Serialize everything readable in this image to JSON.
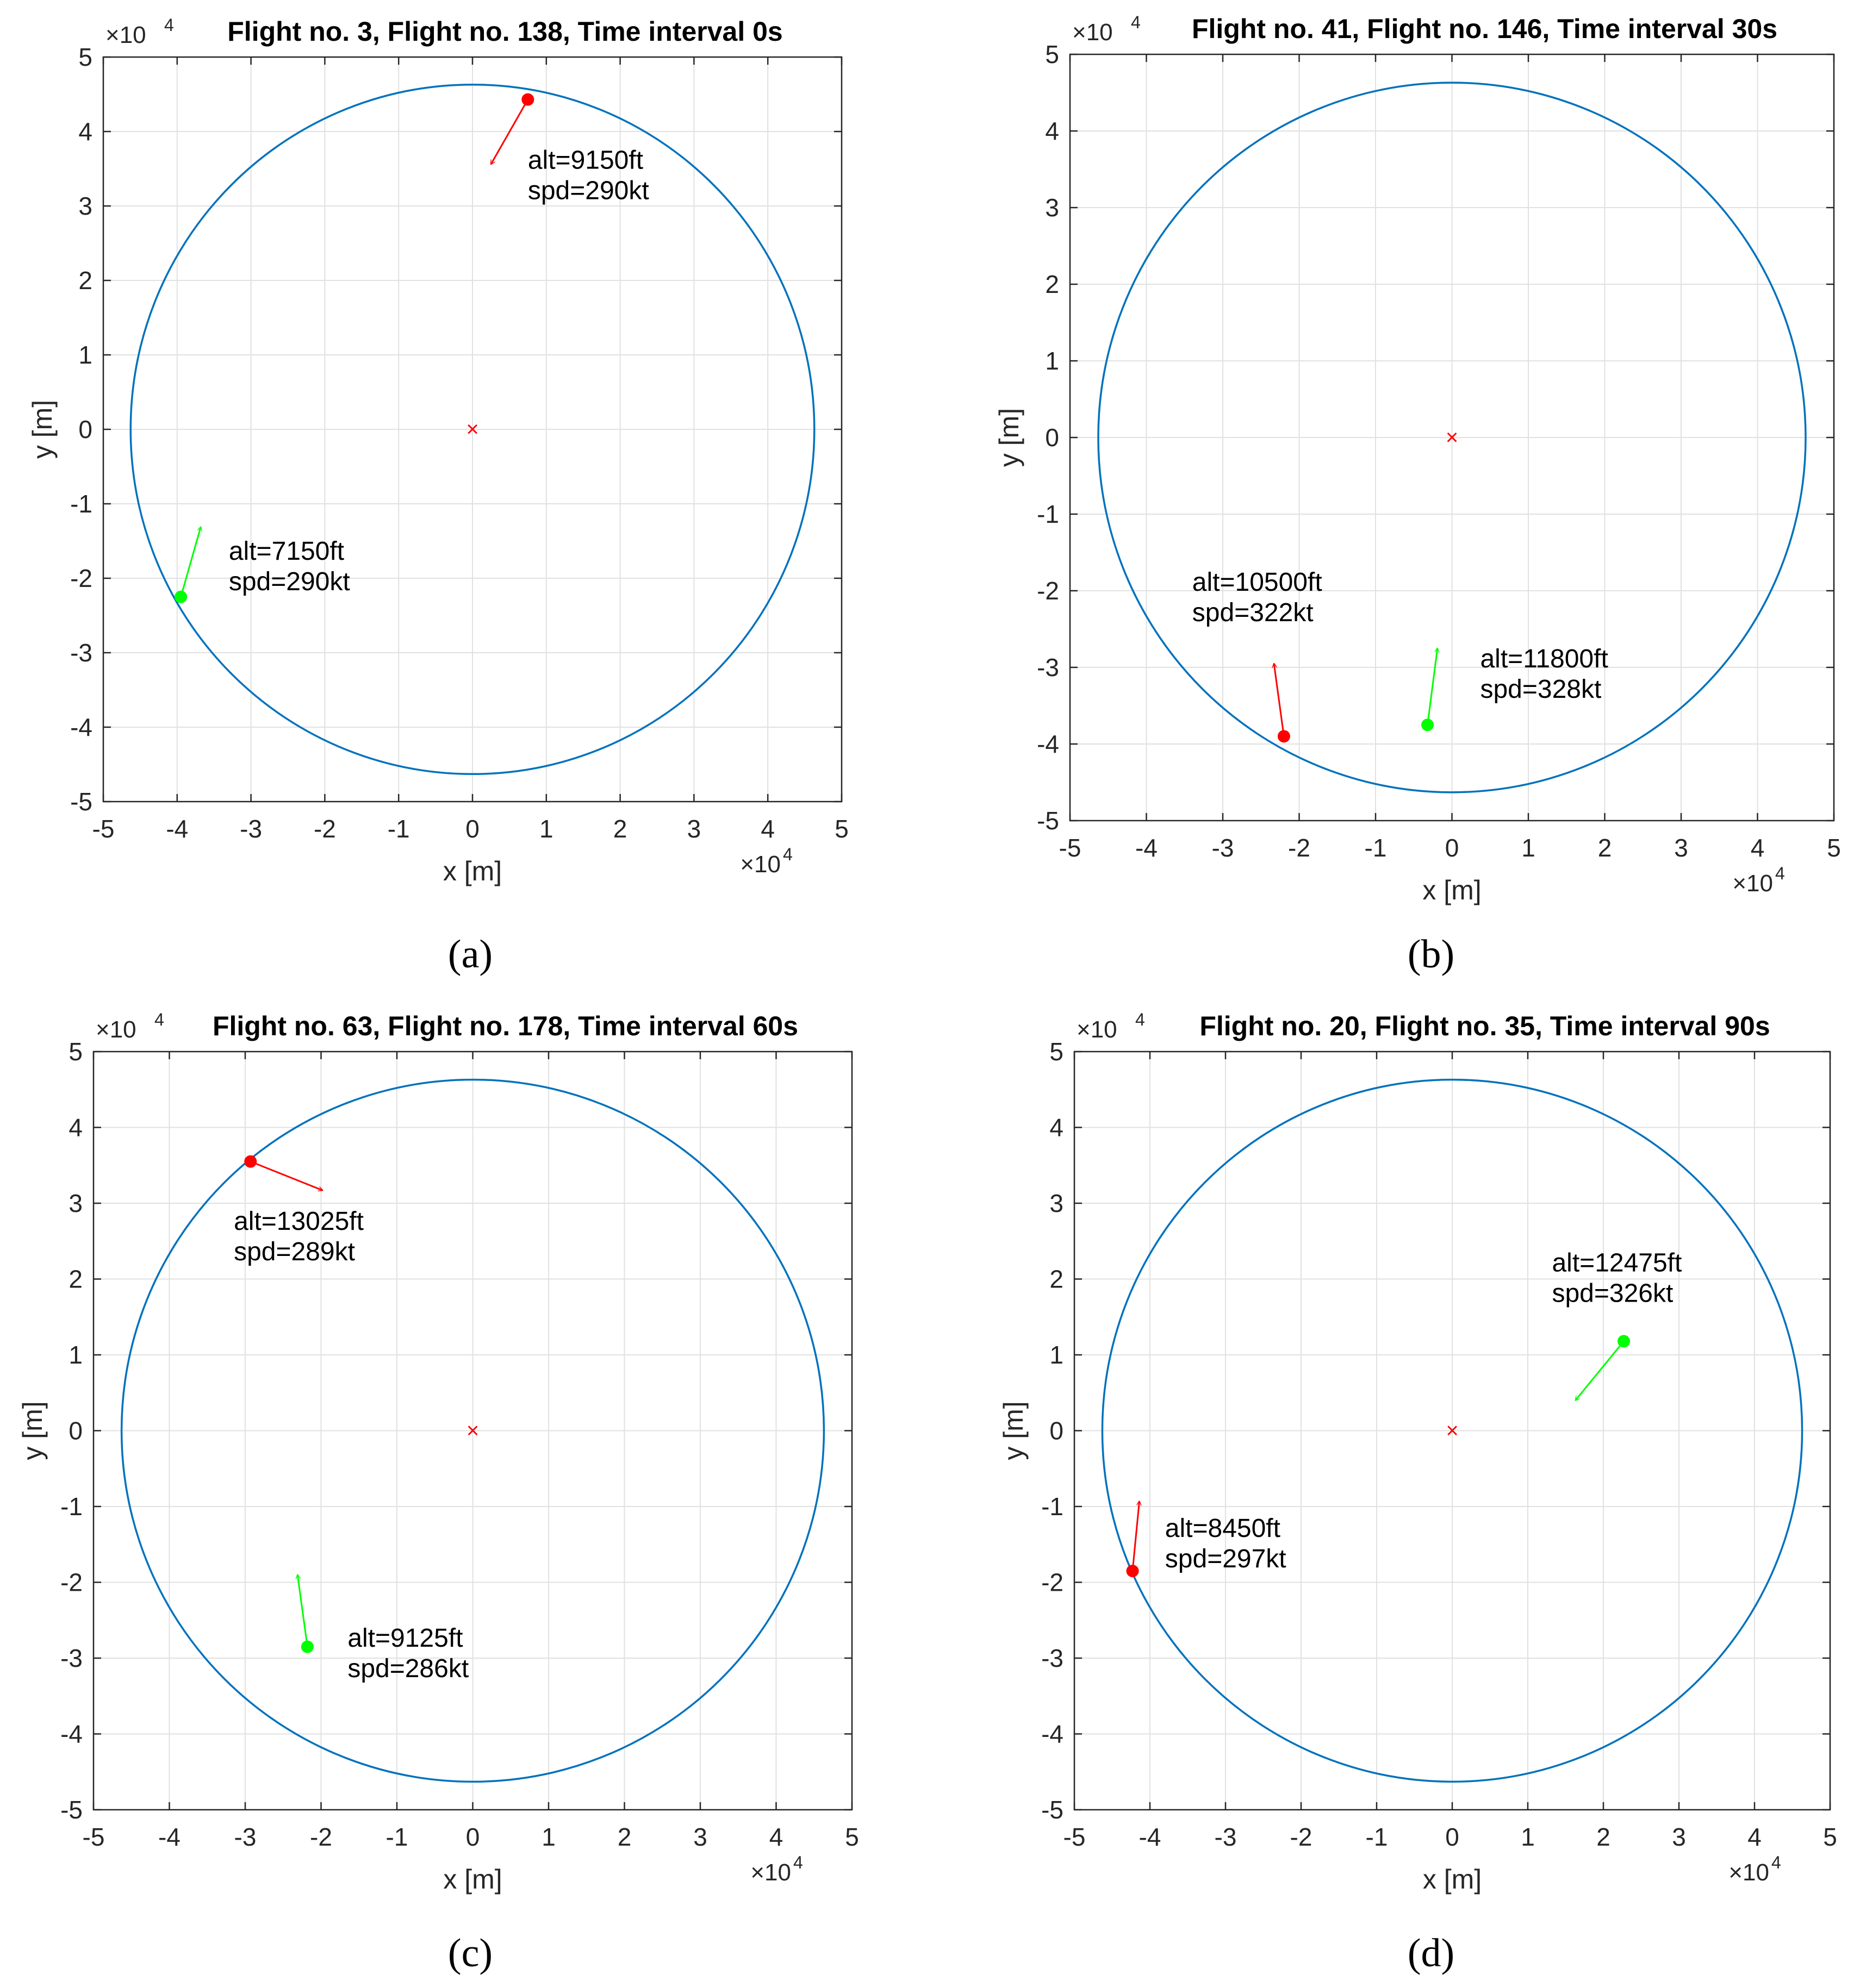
{
  "figure_captions": [
    "(a)",
    "(b)",
    "(c)",
    "(d)"
  ],
  "axis_exponent": "×10",
  "axis_exponent_power": "4",
  "chart_data": [
    {
      "type": "scatter",
      "title": "Flight no. 3, Flight no. 138, Time interval 0s",
      "xlabel": "x [m]",
      "ylabel": "y [m]",
      "xlim": [
        -50000,
        50000
      ],
      "ylim": [
        -50000,
        50000
      ],
      "x_ticks": [
        -50000,
        -40000,
        -30000,
        -20000,
        -10000,
        0,
        10000,
        20000,
        30000,
        40000,
        50000
      ],
      "x_tick_labels": [
        "-5",
        "-4",
        "-3",
        "-2",
        "-1",
        "0",
        "1",
        "2",
        "3",
        "4",
        "5"
      ],
      "y_ticks": [
        -50000,
        -40000,
        -30000,
        -20000,
        -10000,
        0,
        10000,
        20000,
        30000,
        40000,
        50000
      ],
      "y_tick_labels": [
        "-5",
        "-4",
        "-3",
        "-2",
        "-1",
        "0",
        "1",
        "2",
        "3",
        "4",
        "5"
      ],
      "grid": true,
      "circle": {
        "center": [
          0,
          0
        ],
        "radius": 46300,
        "color": "#0072BD"
      },
      "center_marker": {
        "x": 0,
        "y": 0,
        "symbol": "×",
        "color": "#FF0000"
      },
      "aircraft": [
        {
          "color": "#FF0000",
          "x": 7500,
          "y": 44300,
          "dx": -5000,
          "dy": -8700,
          "label_x": 7500,
          "label_y": 35000,
          "alt": "alt=9150ft",
          "spd": "spd=290kt"
        },
        {
          "color": "#00FF00",
          "x": -39500,
          "y": -22500,
          "dx": 2700,
          "dy": 9400,
          "label_x": -33000,
          "label_y": -17500,
          "alt": "alt=7150ft",
          "spd": "spd=290kt"
        }
      ]
    },
    {
      "type": "scatter",
      "title": "Flight no. 41, Flight no. 146, Time interval 30s",
      "xlabel": "x [m]",
      "ylabel": "y [m]",
      "xlim": [
        -50000,
        50000
      ],
      "ylim": [
        -50000,
        50000
      ],
      "x_ticks": [
        -50000,
        -40000,
        -30000,
        -20000,
        -10000,
        0,
        10000,
        20000,
        30000,
        40000,
        50000
      ],
      "x_tick_labels": [
        "-5",
        "-4",
        "-3",
        "-2",
        "-1",
        "0",
        "1",
        "2",
        "3",
        "4",
        "5"
      ],
      "y_ticks": [
        -50000,
        -40000,
        -30000,
        -20000,
        -10000,
        0,
        10000,
        20000,
        30000,
        40000,
        50000
      ],
      "y_tick_labels": [
        "-5",
        "-4",
        "-3",
        "-2",
        "-1",
        "0",
        "1",
        "2",
        "3",
        "4",
        "5"
      ],
      "grid": true,
      "circle": {
        "center": [
          0,
          0
        ],
        "radius": 46300,
        "color": "#0072BD"
      },
      "center_marker": {
        "x": 0,
        "y": 0,
        "symbol": "×",
        "color": "#FF0000"
      },
      "aircraft": [
        {
          "color": "#FF0000",
          "x": -22000,
          "y": -39000,
          "dx": -1300,
          "dy": 9500,
          "label_x": -34000,
          "label_y": -20000,
          "alt": "alt=10500ft",
          "spd": "spd=322kt"
        },
        {
          "color": "#00FF00",
          "x": -3200,
          "y": -37500,
          "dx": 1300,
          "dy": 10000,
          "label_x": 3700,
          "label_y": -30000,
          "alt": "alt=11800ft",
          "spd": "spd=328kt"
        }
      ]
    },
    {
      "type": "scatter",
      "title": "Flight no. 63, Flight no. 178, Time interval 60s",
      "xlabel": "x [m]",
      "ylabel": "y [m]",
      "xlim": [
        -50000,
        50000
      ],
      "ylim": [
        -50000,
        50000
      ],
      "x_ticks": [
        -50000,
        -40000,
        -30000,
        -20000,
        -10000,
        0,
        10000,
        20000,
        30000,
        40000,
        50000
      ],
      "x_tick_labels": [
        "-5",
        "-4",
        "-3",
        "-2",
        "-1",
        "0",
        "1",
        "2",
        "3",
        "4",
        "5"
      ],
      "y_ticks": [
        -50000,
        -40000,
        -30000,
        -20000,
        -10000,
        0,
        10000,
        20000,
        30000,
        40000,
        50000
      ],
      "y_tick_labels": [
        "-5",
        "-4",
        "-3",
        "-2",
        "-1",
        "0",
        "1",
        "2",
        "3",
        "4",
        "5"
      ],
      "grid": true,
      "circle": {
        "center": [
          0,
          0
        ],
        "radius": 46300,
        "color": "#0072BD"
      },
      "center_marker": {
        "x": 0,
        "y": 0,
        "symbol": "×",
        "color": "#FF0000"
      },
      "aircraft": [
        {
          "color": "#FF0000",
          "x": -29300,
          "y": 35500,
          "dx": 9500,
          "dy": -3800,
          "label_x": -31500,
          "label_y": 26500,
          "alt": "alt=13025ft",
          "spd": "spd=289kt"
        },
        {
          "color": "#00FF00",
          "x": -21800,
          "y": -28500,
          "dx": -1300,
          "dy": 9500,
          "label_x": -16500,
          "label_y": -28500,
          "alt": "alt=9125ft",
          "spd": "spd=286kt"
        }
      ]
    },
    {
      "type": "scatter",
      "title": "Flight no. 20, Flight no. 35, Time interval 90s",
      "xlabel": "x [m]",
      "ylabel": "y [m]",
      "xlim": [
        -50000,
        50000
      ],
      "ylim": [
        -50000,
        50000
      ],
      "x_ticks": [
        -50000,
        -40000,
        -30000,
        -20000,
        -10000,
        0,
        10000,
        20000,
        30000,
        40000,
        50000
      ],
      "x_tick_labels": [
        "-5",
        "-4",
        "-3",
        "-2",
        "-1",
        "0",
        "1",
        "2",
        "3",
        "4",
        "5"
      ],
      "y_ticks": [
        -50000,
        -40000,
        -30000,
        -20000,
        -10000,
        0,
        10000,
        20000,
        30000,
        40000,
        50000
      ],
      "y_tick_labels": [
        "-5",
        "-4",
        "-3",
        "-2",
        "-1",
        "0",
        "1",
        "2",
        "3",
        "4",
        "5"
      ],
      "grid": true,
      "circle": {
        "center": [
          0,
          0
        ],
        "radius": 46300,
        "color": "#0072BD"
      },
      "center_marker": {
        "x": 0,
        "y": 0,
        "symbol": "×",
        "color": "#FF0000"
      },
      "aircraft": [
        {
          "color": "#FF0000",
          "x": -42300,
          "y": -18500,
          "dx": 900,
          "dy": 9200,
          "label_x": -38000,
          "label_y": -14000,
          "alt": "alt=8450ft",
          "spd": "spd=297kt"
        },
        {
          "color": "#00FF00",
          "x": 22700,
          "y": 11800,
          "dx": -6400,
          "dy": -7800,
          "label_x": 13200,
          "label_y": 21000,
          "alt": "alt=12475ft",
          "spd": "spd=326kt"
        }
      ]
    }
  ]
}
